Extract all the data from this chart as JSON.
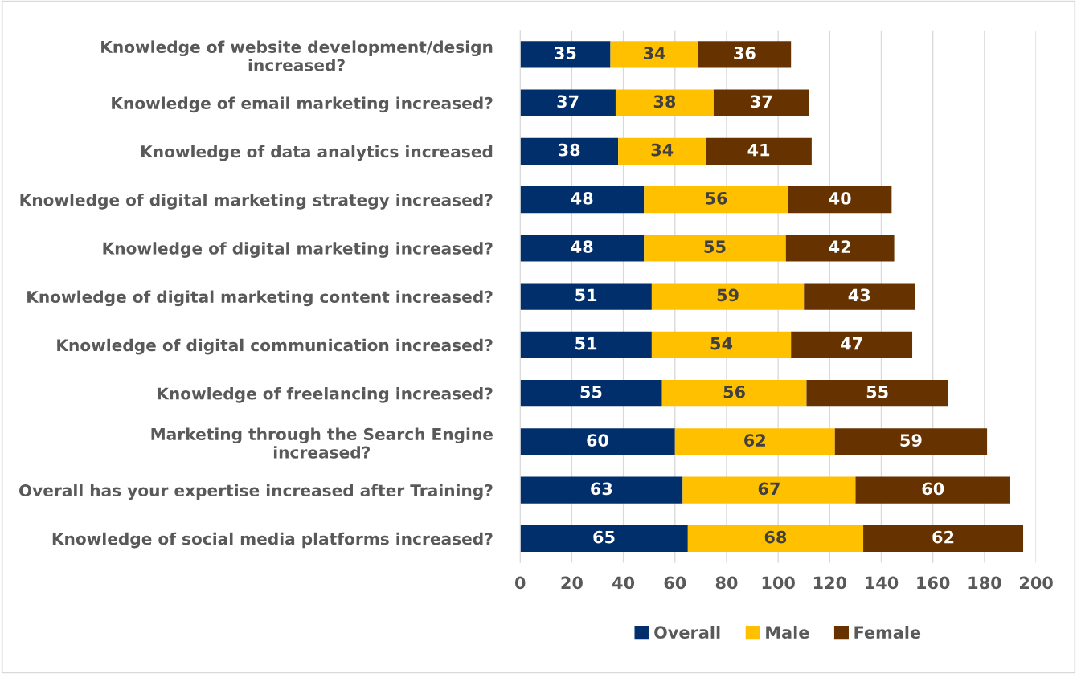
{
  "chart_data": {
    "type": "bar",
    "orientation": "horizontal",
    "stacked": true,
    "categories": [
      "Knowledge of website development/design\nincreased?",
      "Knowledge of email marketing increased?",
      "Knowledge of data analytics increased",
      "Knowledge of digital marketing strategy increased?",
      "Knowledge of digital marketing increased?",
      "Knowledge of digital marketing content increased?",
      "Knowledge of digital communication increased?",
      "Knowledge of freelancing increased?",
      "Marketing through the Search Engine\nincreased?",
      "Overall has your expertise increased after Training?",
      "Knowledge of social media platforms increased?"
    ],
    "series": [
      {
        "name": "Overall",
        "color": "#002f6c",
        "values": [
          35,
          37,
          38,
          48,
          48,
          51,
          51,
          55,
          60,
          63,
          65
        ]
      },
      {
        "name": "Male",
        "color": "#ffc000",
        "values": [
          34,
          38,
          34,
          56,
          55,
          59,
          54,
          56,
          62,
          67,
          68
        ]
      },
      {
        "name": "Female",
        "color": "#663300",
        "values": [
          36,
          37,
          41,
          40,
          42,
          43,
          47,
          55,
          59,
          60,
          62
        ]
      }
    ],
    "xlim": [
      0,
      200
    ],
    "xticks": [
      0,
      20,
      40,
      60,
      80,
      100,
      120,
      140,
      160,
      180,
      200
    ],
    "grid": "x",
    "legend": "bottom",
    "data_labels": true
  }
}
